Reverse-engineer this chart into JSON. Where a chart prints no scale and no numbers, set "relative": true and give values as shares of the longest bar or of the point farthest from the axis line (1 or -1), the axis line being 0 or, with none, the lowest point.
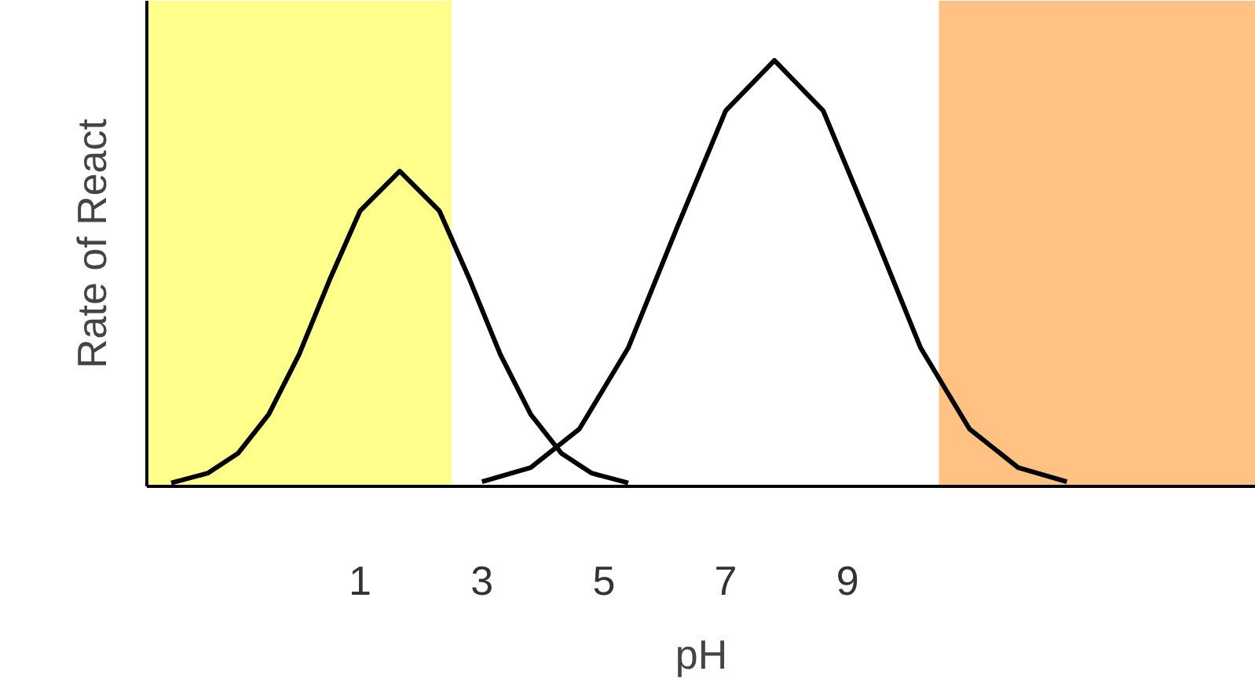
{
  "chart_data": {
    "type": "line",
    "relative": true,
    "xlabel": "pH",
    "ylabel": "Rate of React",
    "xlim": [
      -2.5,
      15.7
    ],
    "xticks": [
      1,
      3,
      5,
      7,
      9
    ],
    "grid": false,
    "marker": "none",
    "line_style": "solid",
    "series": [
      {
        "color": "#000000",
        "x": [
          -2.1,
          -1.5,
          -1,
          -0.5,
          0,
          0.5,
          1,
          1.65,
          2.3,
          2.8,
          3.3,
          3.8,
          4.3,
          4.8,
          5.4
        ],
        "values": [
          0.008,
          0.031,
          0.078,
          0.169,
          0.31,
          0.485,
          0.647,
          0.74,
          0.647,
          0.485,
          0.31,
          0.169,
          0.078,
          0.031,
          0.008
        ]
      },
      {
        "color": "#000000",
        "x": [
          3.0,
          3.8,
          4.6,
          5.4,
          6.2,
          7.0,
          7.8,
          8.6,
          9.4,
          10.2,
          11.0,
          11.8,
          12.6
        ],
        "values": [
          0.011,
          0.044,
          0.135,
          0.325,
          0.607,
          0.882,
          1,
          0.882,
          0.607,
          0.325,
          0.135,
          0.044,
          0.011
        ]
      }
    ],
    "bands": [
      {
        "axis": "x",
        "from": -2.5,
        "to": 2.5,
        "color": "#ffff40"
      },
      {
        "axis": "x",
        "from": 10.5,
        "to": 15.7,
        "color": "#ff9a30"
      }
    ]
  }
}
